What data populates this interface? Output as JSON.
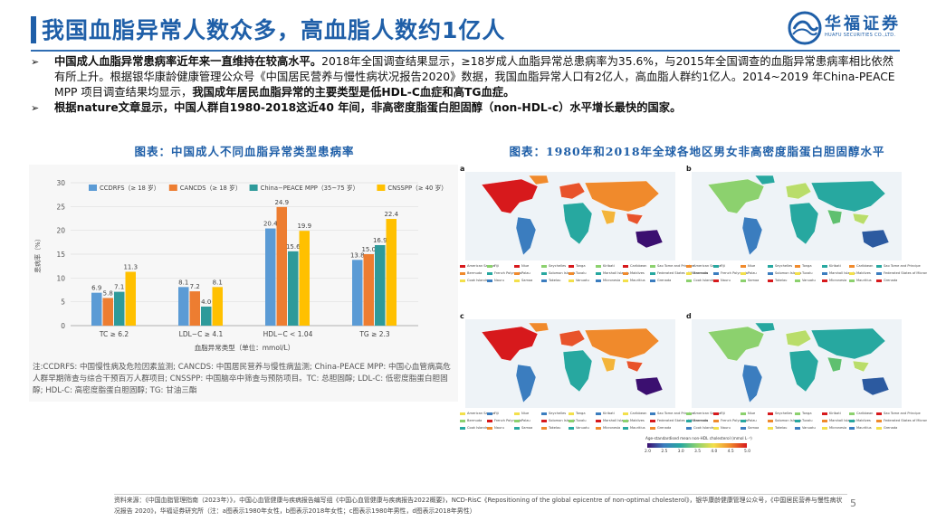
{
  "page": {
    "title": "我国血脂异常人数众多，高血脂人数约1亿人",
    "page_number": "5"
  },
  "logo": {
    "cn": "华福证券",
    "en": "HUAFU SECURITIES CO.,LTD."
  },
  "bullets": [
    {
      "mark": "➢",
      "parts": [
        {
          "bold": true,
          "text": "中国成人血脂异常患病率近年来一直维持在较高水平。"
        },
        {
          "bold": false,
          "text": "2018年全国调查结果显示，≥18岁成人血脂异常总患病率为35.6%，与2015年全国调查的血脂异常患病率相比依然有所上升。根据银华康龄健康管理公众号《中国居民营养与慢性病状况报告2020》数据，我国血脂异常人口有2亿人，高血脂人群约1亿人。2014~2019 年China-PEACE MPP 项目调查结果均显示，"
        },
        {
          "bold": true,
          "text": "我国成年居民血脂异常的主要类型是低HDL-C血症和高TG血症。"
        }
      ]
    },
    {
      "mark": "➢",
      "parts": [
        {
          "bold": true,
          "text": "根据nature文章显示，中国人群自1980-2018这近40 年间，非高密度脂蛋白胆固醇（non-HDL-c）水平增长最快的国家。"
        }
      ]
    }
  ],
  "left_chart": {
    "title": "图表：中国成人不同血脂异常类型患病率",
    "note": "注:CCDRFS: 中国慢性病及危险因素监测; CANCDS: 中国居民营养与慢性病监测; China-PEACE MPP: 中国心血管病高危人群早期筛查与综合干预百万人群项目; CNSSPP: 中国脑卒中筛查与预防项目。TC: 总胆固醇; LDL-C: 低密度脂蛋白胆固醇; HDL-C: 高密度脂蛋白胆固醇; TG: 甘油三酯"
  },
  "chart_data": {
    "type": "bar",
    "title": "",
    "categories": [
      "TC ≥ 6.2",
      "LDL−C ≥ 4.1",
      "HDL−C < 1.04",
      "TG ≥ 2.3"
    ],
    "series": [
      {
        "name": "CCDRFS（≥ 18 岁）",
        "color": "#5b9bd5",
        "values": [
          6.9,
          8.1,
          20.4,
          13.8
        ]
      },
      {
        "name": "CANCDS（≥ 18 岁）",
        "color": "#ed7d31",
        "values": [
          5.8,
          7.2,
          24.9,
          15.0
        ]
      },
      {
        "name": "China−PEACE MPP（35~75 岁）",
        "color": "#2e9a9a",
        "values": [
          7.1,
          4.0,
          15.6,
          16.9
        ]
      },
      {
        "name": "CNSSPP（≥ 40 岁）",
        "color": "#ffc000",
        "values": [
          11.3,
          8.1,
          19.9,
          22.4
        ]
      }
    ],
    "xlabel": "血脂异常类型（单位：mmol/L）",
    "ylabel": "患病率（%）",
    "ylim": [
      0,
      30
    ],
    "yticks": [
      0,
      5,
      10,
      15,
      20,
      25,
      30
    ],
    "grid": true,
    "legend_position": "top"
  },
  "right_chart": {
    "title": "图表：1980年和2018年全球各地区男女非高密度脂蛋白胆固醇水平",
    "panels": [
      "a",
      "b",
      "c",
      "d"
    ],
    "scale_title": "Age-standardised mean non-HDL cholesterol (mmol L⁻¹)",
    "scale_ticks": [
      "2.0",
      "2.5",
      "3.0",
      "3.5",
      "4.0",
      "4.5",
      "5.0"
    ],
    "legend_countries": [
      "American Samoa",
      "Bermuda",
      "Cook Islands",
      "Fiji",
      "French Polynesia",
      "Nauru",
      "Niue",
      "Palau",
      "Samoa",
      "Seychelles",
      "Solomon Islands",
      "Tokelau",
      "Tonga",
      "Tuvalu",
      "Vanuatu",
      "Kiribati",
      "Marshall Islands",
      "Micronesia",
      "Caribbean",
      "Maldives",
      "Mauritius",
      "Sao Tome and Principe",
      "Federated States of Micronesia",
      "Grenada"
    ],
    "legend_colors": [
      "#d7191c",
      "#f08a2c",
      "#f3e04b",
      "#8cd16e",
      "#27a8a0",
      "#3b7dbf"
    ],
    "panel_palettes": {
      "a": [
        "#d7191c",
        "#e8532b",
        "#f08a2c",
        "#f3b43a",
        "#3b7dbf",
        "#27a8a0",
        "#3b0f70"
      ],
      "b": [
        "#8cd16e",
        "#b9dd6a",
        "#27a8a0",
        "#5fc06f",
        "#3b7dbf",
        "#27a8a0",
        "#2c5aa0"
      ],
      "c": [
        "#d7191c",
        "#e8532b",
        "#f08a2c",
        "#f3b43a",
        "#3b7dbf",
        "#27a8a0",
        "#3b0f70"
      ],
      "d": [
        "#8cd16e",
        "#b9dd6a",
        "#27a8a0",
        "#5fc06f",
        "#3b7dbf",
        "#27a8a0",
        "#2c5aa0"
      ]
    }
  },
  "footer": {
    "source": "资料来源：《中国血脂管理指南（2023年）》，中国心血管健康与疾病报告编写组《中国心血管健康与疾病报告2022概要》，NCD-RisC《Repositioning of the global epicentre of non-optimal cholesterol》，银华康龄健康管理公众号，《中国居民营养与慢性病状况报告 2020》，华福证券研究所（注：a图表示1980年女性，b图表示2018年女性；c图表示1980年男性，d图表示2018年男性）"
  }
}
